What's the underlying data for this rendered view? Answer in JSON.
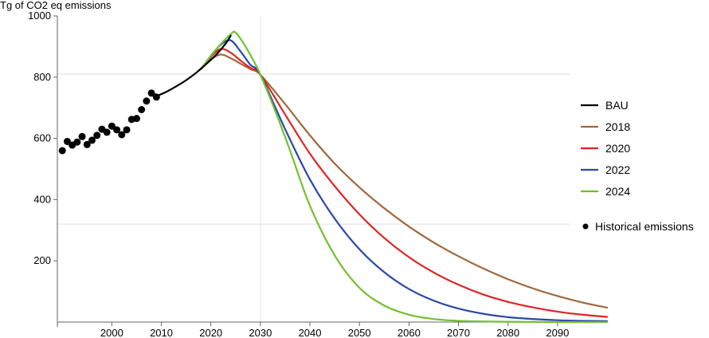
{
  "chart_data": {
    "type": "line",
    "ylabel": "Tg of CO2 eq emissions",
    "xlim": [
      1989,
      2100
    ],
    "ylim": [
      0,
      1000
    ],
    "x_ticks": [
      2000,
      2010,
      2020,
      2030,
      2040,
      2050,
      2060,
      2070,
      2080,
      2090
    ],
    "y_ticks": [
      200,
      400,
      600,
      800,
      1000
    ],
    "grid": "horizontal at 320 and 810, vertical at 2030",
    "legend_position": "right",
    "legend": [
      "BAU",
      "2018",
      "2020",
      "2022",
      "2024",
      "Historical emissions"
    ],
    "colors": {
      "BAU": "#000000",
      "2018": "#a0683a",
      "2020": "#e02424",
      "2022": "#2b48a8",
      "2024": "#72c02f",
      "Historical emissions": "#000000"
    },
    "series": [
      {
        "name": "BAU",
        "points": [
          [
            2009,
            738
          ],
          [
            2011,
            752
          ],
          [
            2013,
            770
          ],
          [
            2015,
            790
          ],
          [
            2017,
            814
          ],
          [
            2019,
            842
          ],
          [
            2021,
            872
          ],
          [
            2023,
            910
          ],
          [
            2024,
            935
          ]
        ]
      },
      {
        "name": "2018",
        "points": [
          [
            2018,
            826
          ],
          [
            2020,
            858
          ],
          [
            2022,
            874
          ],
          [
            2024,
            862
          ],
          [
            2026,
            844
          ],
          [
            2028,
            826
          ],
          [
            2030,
            808
          ],
          [
            2035,
            712
          ],
          [
            2040,
            610
          ],
          [
            2045,
            518
          ],
          [
            2050,
            440
          ],
          [
            2055,
            372
          ],
          [
            2060,
            312
          ],
          [
            2065,
            260
          ],
          [
            2070,
            215
          ],
          [
            2075,
            175
          ],
          [
            2080,
            140
          ],
          [
            2085,
            110
          ],
          [
            2090,
            85
          ],
          [
            2095,
            64
          ],
          [
            2100,
            47
          ]
        ]
      },
      {
        "name": "2020",
        "points": [
          [
            2018,
            826
          ],
          [
            2020,
            866
          ],
          [
            2022,
            892
          ],
          [
            2024,
            880
          ],
          [
            2026,
            854
          ],
          [
            2028,
            830
          ],
          [
            2030,
            808
          ],
          [
            2035,
            678
          ],
          [
            2040,
            550
          ],
          [
            2045,
            444
          ],
          [
            2050,
            352
          ],
          [
            2055,
            275
          ],
          [
            2060,
            212
          ],
          [
            2065,
            162
          ],
          [
            2070,
            122
          ],
          [
            2075,
            90
          ],
          [
            2080,
            66
          ],
          [
            2085,
            48
          ],
          [
            2090,
            34
          ],
          [
            2095,
            24
          ],
          [
            2100,
            17
          ]
        ]
      },
      {
        "name": "2022",
        "points": [
          [
            2018,
            826
          ],
          [
            2020,
            870
          ],
          [
            2022,
            906
          ],
          [
            2024,
            920
          ],
          [
            2026,
            884
          ],
          [
            2028,
            840
          ],
          [
            2030,
            808
          ],
          [
            2035,
            630
          ],
          [
            2040,
            466
          ],
          [
            2045,
            338
          ],
          [
            2050,
            238
          ],
          [
            2055,
            163
          ],
          [
            2060,
            108
          ],
          [
            2065,
            70
          ],
          [
            2070,
            44
          ],
          [
            2075,
            27
          ],
          [
            2080,
            16
          ],
          [
            2085,
            10
          ],
          [
            2090,
            6
          ],
          [
            2095,
            4
          ],
          [
            2100,
            3
          ]
        ]
      },
      {
        "name": "2024",
        "points": [
          [
            2018,
            826
          ],
          [
            2020,
            870
          ],
          [
            2022,
            908
          ],
          [
            2024,
            940
          ],
          [
            2025,
            946
          ],
          [
            2027,
            900
          ],
          [
            2029,
            842
          ],
          [
            2030,
            808
          ],
          [
            2033,
            690
          ],
          [
            2036,
            560
          ],
          [
            2040,
            380
          ],
          [
            2045,
            218
          ],
          [
            2050,
            112
          ],
          [
            2055,
            54
          ],
          [
            2060,
            24
          ],
          [
            2065,
            10
          ],
          [
            2070,
            4
          ],
          [
            2075,
            2
          ],
          [
            2080,
            1
          ],
          [
            2090,
            0
          ],
          [
            2100,
            0
          ]
        ]
      },
      {
        "name": "Historical emissions",
        "points": [
          [
            1990,
            560
          ],
          [
            1991,
            590
          ],
          [
            1992,
            578
          ],
          [
            1993,
            588
          ],
          [
            1994,
            606
          ],
          [
            1995,
            580
          ],
          [
            1996,
            594
          ],
          [
            1997,
            610
          ],
          [
            1998,
            630
          ],
          [
            1999,
            620
          ],
          [
            2000,
            640
          ],
          [
            2001,
            628
          ],
          [
            2002,
            612
          ],
          [
            2003,
            628
          ],
          [
            2004,
            662
          ],
          [
            2005,
            665
          ],
          [
            2006,
            694
          ],
          [
            2007,
            722
          ],
          [
            2008,
            748
          ],
          [
            2009,
            735
          ]
        ]
      }
    ]
  }
}
